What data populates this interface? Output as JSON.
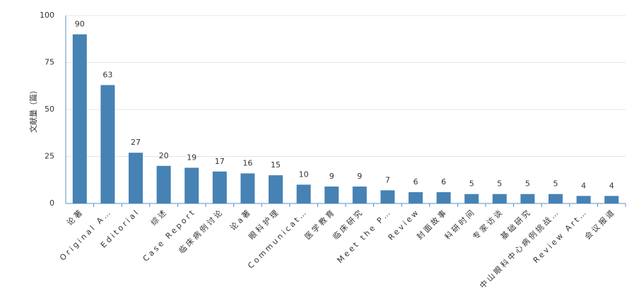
{
  "chart_data": {
    "type": "bar",
    "y_label": "文献量（篇）",
    "categories": [
      "论著",
      "Original A…",
      "Editorial",
      "综述",
      "Case Report",
      "临床病例讨论",
      "论a著",
      "眼科护理",
      "Communicat…",
      "医学教育",
      "临床研究",
      "Meet the P…",
      "Review",
      "封面故事",
      "科研时间",
      "专家访谈",
      "基础研究",
      "中山眼科中心病例挑战…",
      "Review Art…",
      "会议报道"
    ],
    "values": [
      90,
      63,
      27,
      20,
      19,
      17,
      16,
      15,
      10,
      9,
      9,
      7,
      6,
      6,
      5,
      5,
      5,
      5,
      4,
      4
    ],
    "color": "#4682b4",
    "ylim": [
      0,
      100
    ],
    "yticks": [
      0,
      25,
      50,
      75,
      100
    ],
    "grid": true
  }
}
